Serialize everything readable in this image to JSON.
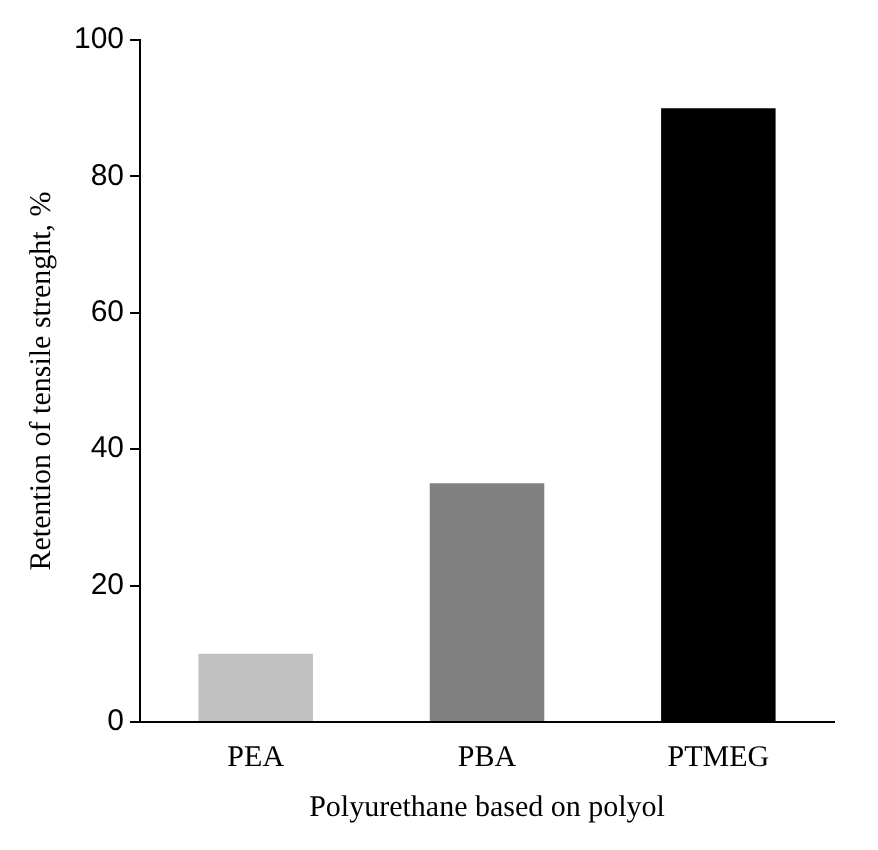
{
  "chart_data": {
    "type": "bar",
    "xlabel": "Polyurethane based on polyol",
    "ylabel": "Retention of tensile strenght, %",
    "categories": [
      "PEA",
      "PBA",
      "PTMEG"
    ],
    "values": [
      10,
      35,
      90
    ],
    "colors": [
      "#c0c0c0",
      "#808080",
      "#000000"
    ],
    "ylim": [
      0,
      100
    ],
    "yticks": [
      0,
      20,
      40,
      60,
      80,
      100
    ],
    "grid": false,
    "legend": false
  }
}
